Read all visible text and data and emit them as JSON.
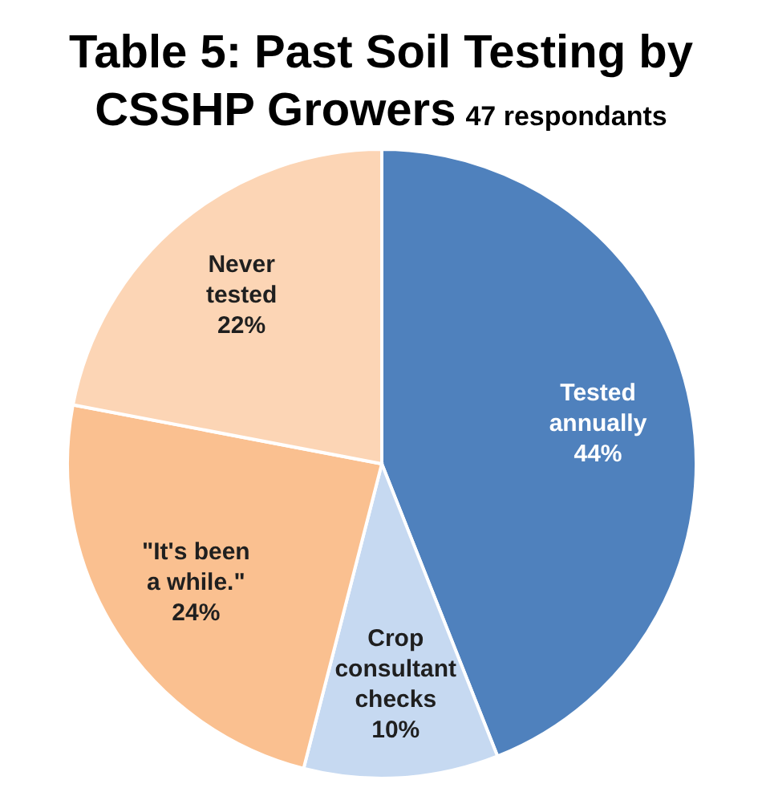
{
  "chart_data": {
    "type": "pie",
    "title": "Table 5: Past Soil Testing by CSSHP Growers",
    "subtitle": "47 respondants",
    "categories": [
      "Tested annually",
      "Crop consultant checks",
      "\"It's been a while.\"",
      "Never tested"
    ],
    "values": [
      44,
      10,
      24,
      22
    ],
    "colors": [
      "#4f81bd",
      "#c6d9f1",
      "#fac090",
      "#fcd5b5"
    ],
    "value_labels": [
      "44%",
      "10%",
      "24%",
      "22%"
    ]
  }
}
